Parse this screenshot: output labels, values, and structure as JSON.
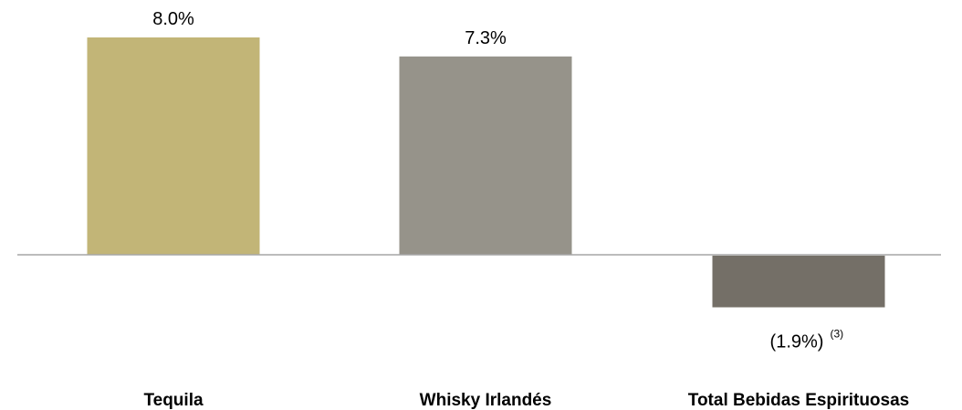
{
  "chart_data": {
    "type": "bar",
    "categories": [
      "Tequila",
      "Whisky Irlandés",
      "Total Bebidas Espirituosas"
    ],
    "values": [
      8.0,
      7.3,
      -1.9
    ],
    "data_labels": [
      "8.0%",
      "7.3%",
      "(1.9%)"
    ],
    "footnotes": [
      "",
      "",
      "(3)"
    ],
    "colors": [
      "#c2b577",
      "#96938a",
      "#746f67"
    ],
    "axis_color": "#a6a6a6",
    "grid": false,
    "legend": "none"
  }
}
